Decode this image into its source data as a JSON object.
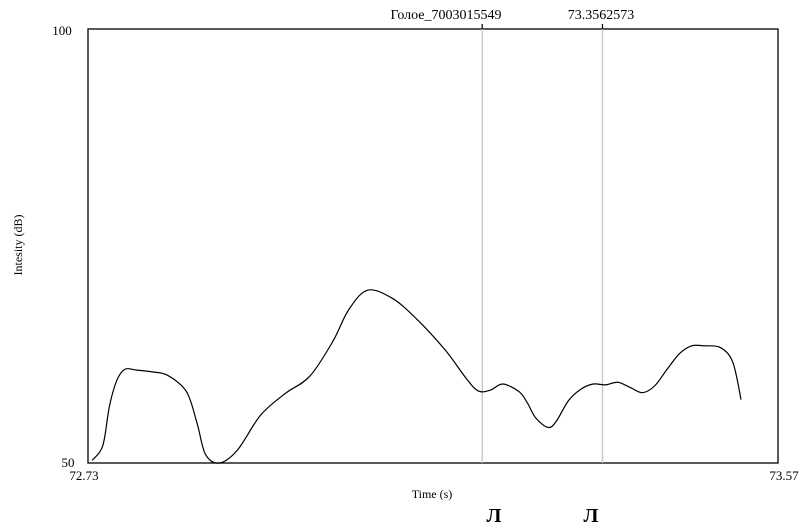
{
  "chart_data": {
    "type": "line",
    "title": "",
    "xlabel": "Time (s)",
    "ylabel": "Intesity (dB)",
    "xlim": [
      72.73,
      73.57
    ],
    "ylim": [
      50,
      100
    ],
    "x_tick_labels": [
      "72.73",
      "73.57"
    ],
    "y_tick_labels": [
      "100",
      "50"
    ],
    "grid": false,
    "cursors": [
      {
        "label": "Голое_7003015549",
        "x": 73.2099
      },
      {
        "label": "73.3562573",
        "x": 73.3563
      }
    ],
    "bottom_markers": [
      "Л",
      "Л"
    ],
    "series": [
      {
        "x": [
          72.735,
          72.748,
          72.756,
          72.765,
          72.775,
          72.789,
          72.808,
          72.827,
          72.85,
          72.863,
          72.873,
          72.89,
          72.912,
          72.94,
          72.97,
          73.0,
          73.028,
          73.047,
          73.07,
          73.1,
          73.13,
          73.165,
          73.19,
          73.205,
          73.22,
          73.235,
          73.255,
          73.265,
          73.275,
          73.29,
          73.3,
          73.315,
          73.33,
          73.345,
          73.36,
          73.375,
          73.39,
          73.405,
          73.42,
          73.435,
          73.45,
          73.465,
          73.48,
          73.5,
          73.515,
          73.525
        ],
        "y": [
          50.3,
          52.0,
          56.5,
          59.5,
          60.8,
          60.7,
          60.5,
          60.1,
          58.2,
          54.5,
          51.0,
          50.0,
          51.5,
          55.5,
          58.0,
          60.0,
          64.0,
          67.6,
          69.9,
          69.0,
          66.6,
          63.0,
          59.8,
          58.3,
          58.4,
          59.1,
          58.2,
          56.9,
          55.2,
          54.1,
          54.8,
          57.2,
          58.5,
          59.1,
          59.0,
          59.3,
          58.7,
          58.1,
          58.9,
          60.8,
          62.6,
          63.5,
          63.5,
          63.3,
          61.6,
          57.3
        ]
      }
    ]
  }
}
